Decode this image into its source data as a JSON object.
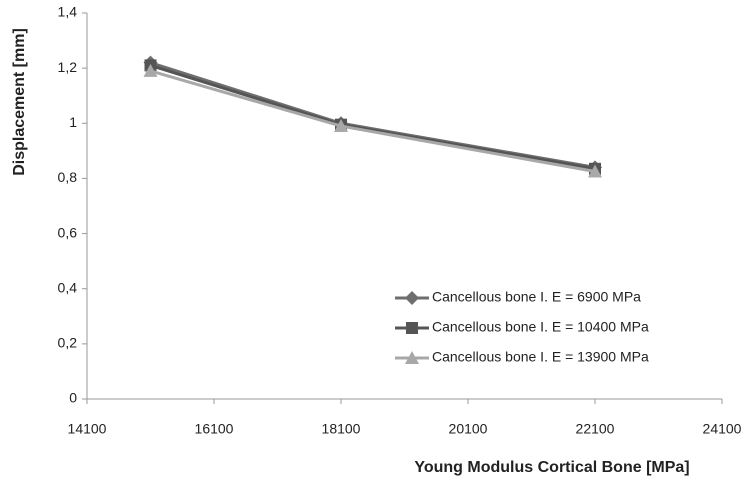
{
  "chart_data": {
    "type": "line",
    "x_label": "Young Modulus Cortical Bone [MPa]",
    "y_label": "Displacement [mm]",
    "x": [
      15100,
      18100,
      22100
    ],
    "series": [
      {
        "name": "Cancellous bone I. E = 6900 MPa",
        "color": "#6e6e6e",
        "marker": "diamond",
        "values": [
          1.22,
          1.0,
          0.84
        ]
      },
      {
        "name": "Cancellous bone I. E = 10400 MPa",
        "color": "#555555",
        "marker": "square",
        "values": [
          1.21,
          0.995,
          0.835
        ]
      },
      {
        "name": "Cancellous bone I. E = 13900 MPa",
        "color": "#a8a8a8",
        "marker": "triangle",
        "values": [
          1.19,
          0.99,
          0.825
        ]
      }
    ],
    "xlim": [
      14100,
      24100
    ],
    "xticks": [
      14100,
      16100,
      18100,
      20100,
      22100,
      24100
    ],
    "ylim": [
      0,
      1.4
    ],
    "yticks": [
      0,
      {
        "value": 0.2,
        "label": "0,2"
      },
      {
        "value": 0.4,
        "label": "0,4"
      },
      {
        "value": 0.6,
        "label": "0,6"
      },
      {
        "value": 0.8,
        "label": "0,8"
      },
      1,
      {
        "value": 1.2,
        "label": "1,2"
      },
      {
        "value": 1.4,
        "label": "1,4"
      }
    ],
    "grid": false,
    "legend": "lower-right"
  }
}
